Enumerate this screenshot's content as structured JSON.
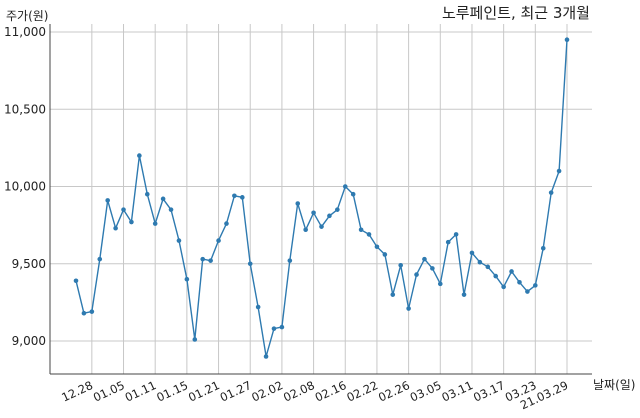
{
  "chart_data": {
    "type": "line",
    "title": "노루페인트, 최근 3개월",
    "xlabel": "날짜(일)",
    "ylabel": "주가(원)",
    "ylim": [
      8800,
      11100
    ],
    "y_ticks": [
      "9,000",
      "9,500",
      "10,000",
      "10,500",
      "11,000"
    ],
    "y_tick_values": [
      9000,
      9500,
      10000,
      10500,
      11000
    ],
    "x_tick_labels": [
      "12.28",
      "01.05",
      "01.11",
      "01.15",
      "01.21",
      "01.27",
      "02.02",
      "02.08",
      "02.16",
      "02.22",
      "02.26",
      "03.05",
      "03.11",
      "03.17",
      "03.23",
      "21.03.29"
    ],
    "x_tick_indices": [
      2,
      6,
      10,
      14,
      18,
      22,
      26,
      30,
      34,
      38,
      42,
      46,
      50,
      54,
      58,
      62
    ],
    "grid": true,
    "colors": {
      "line": "#2e7ab0",
      "marker": "#2e7ab0",
      "grid": "#c8c8c8"
    },
    "series": [
      {
        "name": "",
        "values": [
          9390,
          9180,
          9190,
          9530,
          9910,
          9730,
          9850,
          9770,
          10200,
          9950,
          9760,
          9920,
          9850,
          9650,
          9400,
          9010,
          9530,
          9520,
          9650,
          9760,
          9940,
          9930,
          9500,
          9220,
          8900,
          9080,
          9090,
          9520,
          9890,
          9720,
          9830,
          9740,
          9810,
          9850,
          10000,
          9950,
          9720,
          9690,
          9610,
          9560,
          9300,
          9490,
          9210,
          9430,
          9530,
          9470,
          9370,
          9640,
          9690,
          9300,
          9570,
          9510,
          9480,
          9420,
          9350,
          9450,
          9380,
          9320,
          9360,
          9600,
          9960,
          10100,
          10950
        ]
      }
    ]
  }
}
